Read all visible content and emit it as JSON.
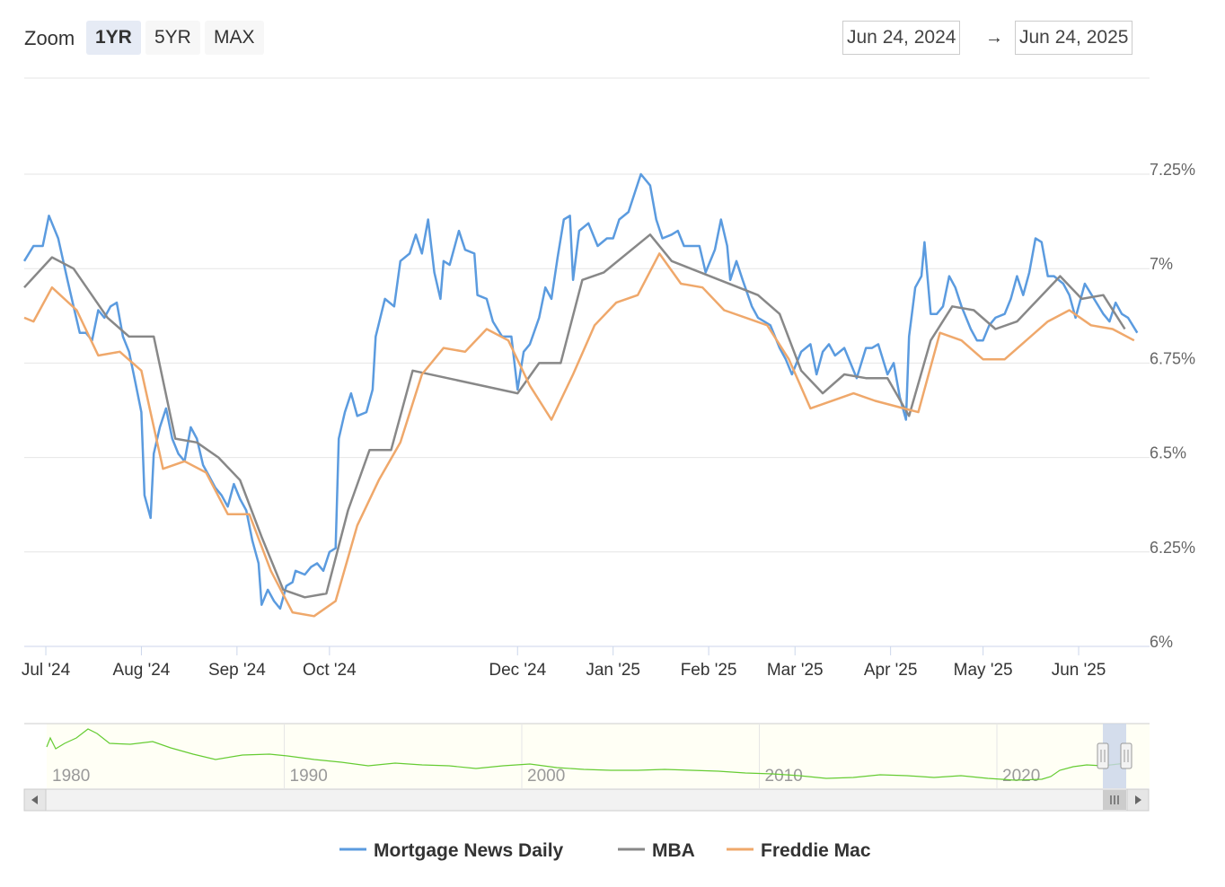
{
  "range_selector": {
    "zoom_label": "Zoom",
    "buttons": [
      {
        "label": "1YR",
        "active": true
      },
      {
        "label": "5YR",
        "active": false
      },
      {
        "label": "MAX",
        "active": false
      }
    ],
    "from_date": "Jun 24, 2024",
    "arrow": "→",
    "to_date": "Jun 24, 2025"
  },
  "navigator": {
    "year_labels": [
      "1980",
      "1990",
      "2000",
      "2010",
      "2020"
    ],
    "series_color": "#66cc33"
  },
  "chart_data": {
    "type": "line",
    "title": "",
    "xlabel": "",
    "ylabel": "",
    "x_range": [
      "2024-06-24",
      "2025-06-24"
    ],
    "ylim": [
      6.0,
      7.5
    ],
    "y_ticks": [
      6.0,
      6.25,
      6.5,
      6.75,
      7.0,
      7.25
    ],
    "y_tick_labels": [
      "6%",
      "6.25%",
      "6.5%",
      "6.75%",
      "7%",
      "7.25%"
    ],
    "x_ticks": [
      {
        "label": "Jul '24",
        "date": "2024-07-01"
      },
      {
        "label": "Aug '24",
        "date": "2024-08-01"
      },
      {
        "label": "Sep '24",
        "date": "2024-09-01"
      },
      {
        "label": "Oct '24",
        "date": "2024-10-01"
      },
      {
        "label": "Dec '24",
        "date": "2024-12-01"
      },
      {
        "label": "Jan '25",
        "date": "2025-01-01"
      },
      {
        "label": "Feb '25",
        "date": "2025-02-01"
      },
      {
        "label": "Mar '25",
        "date": "2025-03-01"
      },
      {
        "label": "Apr '25",
        "date": "2025-04-01"
      },
      {
        "label": "May '25",
        "date": "2025-05-01"
      },
      {
        "label": "Jun '25",
        "date": "2025-06-01"
      }
    ],
    "grid": true,
    "legend_position": "bottom-center",
    "series": [
      {
        "name": "Mortgage News Daily",
        "color": "#5b9bdf",
        "points": [
          [
            "2024-06-24",
            7.02
          ],
          [
            "2024-06-27",
            7.06
          ],
          [
            "2024-06-30",
            7.06
          ],
          [
            "2024-07-02",
            7.14
          ],
          [
            "2024-07-05",
            7.08
          ],
          [
            "2024-07-08",
            6.97
          ],
          [
            "2024-07-10",
            6.9
          ],
          [
            "2024-07-12",
            6.83
          ],
          [
            "2024-07-14",
            6.83
          ],
          [
            "2024-07-16",
            6.81
          ],
          [
            "2024-07-18",
            6.89
          ],
          [
            "2024-07-20",
            6.87
          ],
          [
            "2024-07-22",
            6.9
          ],
          [
            "2024-07-24",
            6.91
          ],
          [
            "2024-07-26",
            6.82
          ],
          [
            "2024-07-28",
            6.78
          ],
          [
            "2024-07-30",
            6.7
          ],
          [
            "2024-08-01",
            6.62
          ],
          [
            "2024-08-02",
            6.4
          ],
          [
            "2024-08-04",
            6.34
          ],
          [
            "2024-08-05",
            6.51
          ],
          [
            "2024-08-07",
            6.58
          ],
          [
            "2024-08-09",
            6.63
          ],
          [
            "2024-08-11",
            6.55
          ],
          [
            "2024-08-13",
            6.51
          ],
          [
            "2024-08-15",
            6.49
          ],
          [
            "2024-08-17",
            6.58
          ],
          [
            "2024-08-19",
            6.55
          ],
          [
            "2024-08-21",
            6.48
          ],
          [
            "2024-08-23",
            6.45
          ],
          [
            "2024-08-25",
            6.42
          ],
          [
            "2024-08-27",
            6.4
          ],
          [
            "2024-08-29",
            6.37
          ],
          [
            "2024-08-31",
            6.43
          ],
          [
            "2024-09-02",
            6.39
          ],
          [
            "2024-09-04",
            6.36
          ],
          [
            "2024-09-06",
            6.28
          ],
          [
            "2024-09-08",
            6.22
          ],
          [
            "2024-09-09",
            6.11
          ],
          [
            "2024-09-11",
            6.15
          ],
          [
            "2024-09-13",
            6.12
          ],
          [
            "2024-09-15",
            6.1
          ],
          [
            "2024-09-17",
            6.16
          ],
          [
            "2024-09-19",
            6.17
          ],
          [
            "2024-09-20",
            6.2
          ],
          [
            "2024-09-23",
            6.19
          ],
          [
            "2024-09-25",
            6.21
          ],
          [
            "2024-09-27",
            6.22
          ],
          [
            "2024-09-29",
            6.2
          ],
          [
            "2024-10-01",
            6.25
          ],
          [
            "2024-10-03",
            6.26
          ],
          [
            "2024-10-04",
            6.55
          ],
          [
            "2024-10-06",
            6.62
          ],
          [
            "2024-10-08",
            6.67
          ],
          [
            "2024-10-10",
            6.61
          ],
          [
            "2024-10-13",
            6.62
          ],
          [
            "2024-10-15",
            6.68
          ],
          [
            "2024-10-16",
            6.82
          ],
          [
            "2024-10-19",
            6.92
          ],
          [
            "2024-10-22",
            6.9
          ],
          [
            "2024-10-24",
            7.02
          ],
          [
            "2024-10-27",
            7.04
          ],
          [
            "2024-10-29",
            7.09
          ],
          [
            "2024-10-31",
            7.04
          ],
          [
            "2024-11-02",
            7.13
          ],
          [
            "2024-11-04",
            6.99
          ],
          [
            "2024-11-06",
            6.92
          ],
          [
            "2024-11-07",
            7.02
          ],
          [
            "2024-11-09",
            7.01
          ],
          [
            "2024-11-12",
            7.1
          ],
          [
            "2024-11-14",
            7.05
          ],
          [
            "2024-11-17",
            7.04
          ],
          [
            "2024-11-18",
            6.93
          ],
          [
            "2024-11-21",
            6.92
          ],
          [
            "2024-11-23",
            6.86
          ],
          [
            "2024-11-26",
            6.82
          ],
          [
            "2024-11-29",
            6.82
          ],
          [
            "2024-12-01",
            6.68
          ],
          [
            "2024-12-03",
            6.78
          ],
          [
            "2024-12-05",
            6.8
          ],
          [
            "2024-12-08",
            6.87
          ],
          [
            "2024-12-10",
            6.95
          ],
          [
            "2024-12-12",
            6.92
          ],
          [
            "2024-12-14",
            7.03
          ],
          [
            "2024-12-16",
            7.13
          ],
          [
            "2024-12-18",
            7.14
          ],
          [
            "2024-12-19",
            6.97
          ],
          [
            "2024-12-21",
            7.1
          ],
          [
            "2024-12-24",
            7.12
          ],
          [
            "2024-12-27",
            7.06
          ],
          [
            "2024-12-30",
            7.08
          ],
          [
            "2025-01-01",
            7.08
          ],
          [
            "2025-01-03",
            7.13
          ],
          [
            "2025-01-06",
            7.15
          ],
          [
            "2025-01-08",
            7.2
          ],
          [
            "2025-01-10",
            7.25
          ],
          [
            "2025-01-13",
            7.22
          ],
          [
            "2025-01-15",
            7.13
          ],
          [
            "2025-01-17",
            7.08
          ],
          [
            "2025-01-20",
            7.09
          ],
          [
            "2025-01-22",
            7.1
          ],
          [
            "2025-01-24",
            7.06
          ],
          [
            "2025-01-27",
            7.06
          ],
          [
            "2025-01-29",
            7.06
          ],
          [
            "2025-01-31",
            6.99
          ],
          [
            "2025-02-03",
            7.05
          ],
          [
            "2025-02-05",
            7.13
          ],
          [
            "2025-02-07",
            7.06
          ],
          [
            "2025-02-08",
            6.97
          ],
          [
            "2025-02-10",
            7.02
          ],
          [
            "2025-02-12",
            6.97
          ],
          [
            "2025-02-15",
            6.9
          ],
          [
            "2025-02-17",
            6.87
          ],
          [
            "2025-02-19",
            6.86
          ],
          [
            "2025-02-21",
            6.85
          ],
          [
            "2025-02-24",
            6.79
          ],
          [
            "2025-02-26",
            6.76
          ],
          [
            "2025-02-28",
            6.72
          ],
          [
            "2025-03-03",
            6.78
          ],
          [
            "2025-03-06",
            6.8
          ],
          [
            "2025-03-08",
            6.72
          ],
          [
            "2025-03-10",
            6.78
          ],
          [
            "2025-03-12",
            6.8
          ],
          [
            "2025-03-14",
            6.77
          ],
          [
            "2025-03-17",
            6.79
          ],
          [
            "2025-03-19",
            6.75
          ],
          [
            "2025-03-21",
            6.71
          ],
          [
            "2025-03-24",
            6.79
          ],
          [
            "2025-03-26",
            6.79
          ],
          [
            "2025-03-28",
            6.8
          ],
          [
            "2025-03-31",
            6.72
          ],
          [
            "2025-04-02",
            6.75
          ],
          [
            "2025-04-04",
            6.66
          ],
          [
            "2025-04-06",
            6.6
          ],
          [
            "2025-04-07",
            6.82
          ],
          [
            "2025-04-09",
            6.95
          ],
          [
            "2025-04-11",
            6.98
          ],
          [
            "2025-04-12",
            7.07
          ],
          [
            "2025-04-14",
            6.88
          ],
          [
            "2025-04-16",
            6.88
          ],
          [
            "2025-04-18",
            6.9
          ],
          [
            "2025-04-20",
            6.98
          ],
          [
            "2025-04-22",
            6.95
          ],
          [
            "2025-04-24",
            6.9
          ],
          [
            "2025-04-27",
            6.84
          ],
          [
            "2025-04-29",
            6.81
          ],
          [
            "2025-05-01",
            6.81
          ],
          [
            "2025-05-03",
            6.85
          ],
          [
            "2025-05-05",
            6.87
          ],
          [
            "2025-05-08",
            6.88
          ],
          [
            "2025-05-10",
            6.92
          ],
          [
            "2025-05-12",
            6.98
          ],
          [
            "2025-05-14",
            6.93
          ],
          [
            "2025-05-16",
            6.99
          ],
          [
            "2025-05-18",
            7.08
          ],
          [
            "2025-05-20",
            7.07
          ],
          [
            "2025-05-22",
            6.98
          ],
          [
            "2025-05-24",
            6.98
          ],
          [
            "2025-05-27",
            6.96
          ],
          [
            "2025-05-29",
            6.93
          ],
          [
            "2025-05-31",
            6.87
          ],
          [
            "2025-06-03",
            6.96
          ],
          [
            "2025-06-06",
            6.92
          ],
          [
            "2025-06-09",
            6.88
          ],
          [
            "2025-06-11",
            6.86
          ],
          [
            "2025-06-13",
            6.91
          ],
          [
            "2025-06-15",
            6.88
          ],
          [
            "2025-06-17",
            6.87
          ],
          [
            "2025-06-20",
            6.83
          ]
        ]
      },
      {
        "name": "MBA",
        "color": "#888888",
        "points": [
          [
            "2024-06-24",
            6.95
          ],
          [
            "2024-07-03",
            7.03
          ],
          [
            "2024-07-10",
            7.0
          ],
          [
            "2024-07-21",
            6.87
          ],
          [
            "2024-07-28",
            6.82
          ],
          [
            "2024-08-05",
            6.82
          ],
          [
            "2024-08-12",
            6.55
          ],
          [
            "2024-08-19",
            6.54
          ],
          [
            "2024-08-26",
            6.5
          ],
          [
            "2024-09-02",
            6.44
          ],
          [
            "2024-09-09",
            6.29
          ],
          [
            "2024-09-16",
            6.15
          ],
          [
            "2024-09-23",
            6.13
          ],
          [
            "2024-09-30",
            6.14
          ],
          [
            "2024-10-07",
            6.36
          ],
          [
            "2024-10-14",
            6.52
          ],
          [
            "2024-10-21",
            6.52
          ],
          [
            "2024-10-28",
            6.73
          ],
          [
            "2024-12-01",
            6.67
          ],
          [
            "2024-12-08",
            6.75
          ],
          [
            "2024-12-15",
            6.75
          ],
          [
            "2024-12-22",
            6.97
          ],
          [
            "2024-12-29",
            6.99
          ],
          [
            "2025-01-13",
            7.09
          ],
          [
            "2025-01-20",
            7.02
          ],
          [
            "2025-02-17",
            6.93
          ],
          [
            "2025-02-24",
            6.88
          ],
          [
            "2025-03-03",
            6.73
          ],
          [
            "2025-03-10",
            6.67
          ],
          [
            "2025-03-17",
            6.72
          ],
          [
            "2025-03-24",
            6.71
          ],
          [
            "2025-03-31",
            6.71
          ],
          [
            "2025-04-07",
            6.61
          ],
          [
            "2025-04-14",
            6.81
          ],
          [
            "2025-04-21",
            6.9
          ],
          [
            "2025-04-28",
            6.89
          ],
          [
            "2025-05-05",
            6.84
          ],
          [
            "2025-05-12",
            6.86
          ],
          [
            "2025-05-19",
            6.92
          ],
          [
            "2025-05-26",
            6.98
          ],
          [
            "2025-06-02",
            6.92
          ],
          [
            "2025-06-09",
            6.93
          ],
          [
            "2025-06-16",
            6.84
          ]
        ]
      },
      {
        "name": "Freddie Mac",
        "color": "#efa86b",
        "points": [
          [
            "2024-06-24",
            6.87
          ],
          [
            "2024-06-27",
            6.86
          ],
          [
            "2024-07-03",
            6.95
          ],
          [
            "2024-07-11",
            6.89
          ],
          [
            "2024-07-18",
            6.77
          ],
          [
            "2024-07-25",
            6.78
          ],
          [
            "2024-08-01",
            6.73
          ],
          [
            "2024-08-08",
            6.47
          ],
          [
            "2024-08-15",
            6.49
          ],
          [
            "2024-08-22",
            6.46
          ],
          [
            "2024-08-29",
            6.35
          ],
          [
            "2024-09-05",
            6.35
          ],
          [
            "2024-09-12",
            6.2
          ],
          [
            "2024-09-19",
            6.09
          ],
          [
            "2024-09-26",
            6.08
          ],
          [
            "2024-10-03",
            6.12
          ],
          [
            "2024-10-10",
            6.32
          ],
          [
            "2024-10-17",
            6.44
          ],
          [
            "2024-10-24",
            6.54
          ],
          [
            "2024-10-31",
            6.72
          ],
          [
            "2024-11-07",
            6.79
          ],
          [
            "2024-11-14",
            6.78
          ],
          [
            "2024-11-21",
            6.84
          ],
          [
            "2024-11-28",
            6.81
          ],
          [
            "2024-12-05",
            6.69
          ],
          [
            "2024-12-12",
            6.6
          ],
          [
            "2024-12-19",
            6.72
          ],
          [
            "2024-12-26",
            6.85
          ],
          [
            "2025-01-02",
            6.91
          ],
          [
            "2025-01-09",
            6.93
          ],
          [
            "2025-01-16",
            7.04
          ],
          [
            "2025-01-23",
            6.96
          ],
          [
            "2025-01-30",
            6.95
          ],
          [
            "2025-02-06",
            6.89
          ],
          [
            "2025-02-20",
            6.85
          ],
          [
            "2025-02-27",
            6.76
          ],
          [
            "2025-03-06",
            6.63
          ],
          [
            "2025-03-20",
            6.67
          ],
          [
            "2025-03-27",
            6.65
          ],
          [
            "2025-04-10",
            6.62
          ],
          [
            "2025-04-17",
            6.83
          ],
          [
            "2025-04-24",
            6.81
          ],
          [
            "2025-05-01",
            6.76
          ],
          [
            "2025-05-08",
            6.76
          ],
          [
            "2025-05-22",
            6.86
          ],
          [
            "2025-05-29",
            6.89
          ],
          [
            "2025-06-05",
            6.85
          ],
          [
            "2025-06-12",
            6.84
          ],
          [
            "2025-06-19",
            6.81
          ]
        ]
      }
    ]
  }
}
